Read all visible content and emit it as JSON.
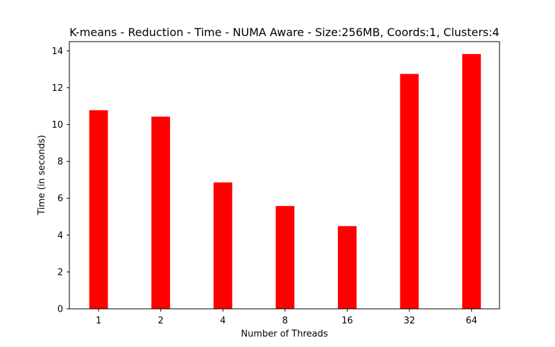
{
  "chart_data": {
    "type": "bar",
    "title": "K-means - Reduction - Time - NUMA Aware - Size:256MB, Coords:1, Clusters:4",
    "xlabel": "Number of Threads",
    "ylabel": "Time (in seconds)",
    "categories": [
      "1",
      "2",
      "4",
      "8",
      "16",
      "32",
      "64"
    ],
    "values": [
      10.78,
      10.43,
      6.86,
      5.58,
      4.49,
      12.75,
      13.83
    ],
    "ylim": [
      0,
      14.5
    ],
    "yticks": [
      "0",
      "2",
      "4",
      "6",
      "8",
      "10",
      "12",
      "14"
    ],
    "bar_color": "#ff0000",
    "grid": false,
    "legend": "none"
  }
}
